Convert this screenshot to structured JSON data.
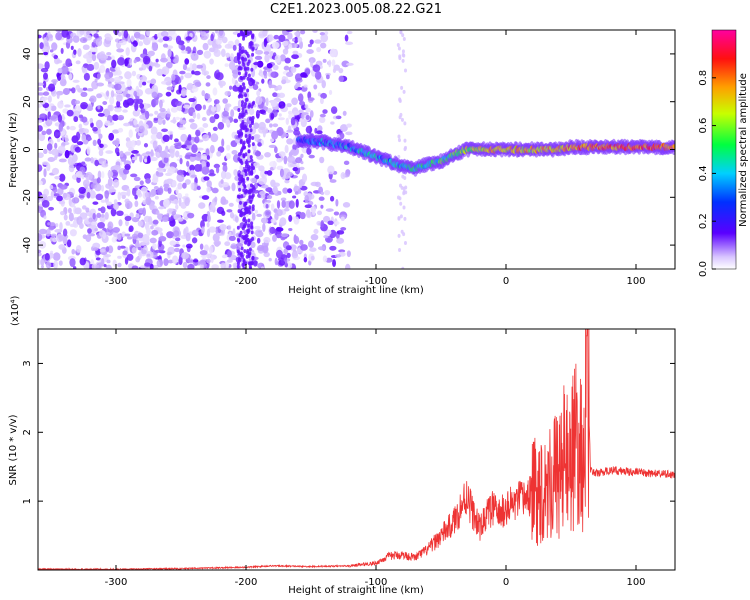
{
  "title": "C2E1.2023.005.08.22.G21",
  "colors": {
    "spectrogram_low": "#5a00ff",
    "spectrogram_mid": "#00e08a",
    "spectrogram_high": "#ff2020",
    "snr_line": "#ee3333"
  },
  "chart_data": [
    {
      "type": "heatmap",
      "xlabel": "Height of straight line (km)",
      "ylabel": "Frequency (Hz)",
      "xlim": [
        -360,
        130
      ],
      "ylim": [
        -50,
        50
      ],
      "x_ticks": [
        -300,
        -200,
        -100,
        0,
        100
      ],
      "y_ticks": [
        -40,
        -20,
        0,
        20,
        40
      ],
      "colorbar": {
        "label": "Normalized spectral amplitude",
        "range": [
          0.0,
          1.0
        ],
        "ticks": [
          "0.0",
          "0.2",
          "0.4",
          "0.6",
          "0.8"
        ],
        "colormap": "rainbow (violet → blue → cyan → green → yellow → red → magenta)"
      },
      "ridge_track": {
        "x": [
          -160,
          -140,
          -120,
          -100,
          -90,
          -80,
          -70,
          -60,
          -50,
          -40,
          -30,
          -20,
          -10,
          0,
          20,
          40,
          50,
          60,
          80,
          100,
          130
        ],
        "y": [
          4,
          3,
          1,
          -3,
          -5,
          -7,
          -8,
          -6,
          -5,
          -2,
          0,
          0,
          0,
          0,
          0,
          0,
          1,
          1,
          1,
          1,
          1
        ],
        "amplitude": [
          0.25,
          0.35,
          0.35,
          0.4,
          0.4,
          0.42,
          0.45,
          0.45,
          0.5,
          0.55,
          0.6,
          0.65,
          0.7,
          0.7,
          0.7,
          0.7,
          0.75,
          0.8,
          0.8,
          0.8,
          0.8
        ]
      },
      "noise_region": {
        "x_range": [
          -360,
          -120
        ],
        "amplitude_range": [
          0.02,
          0.15
        ]
      }
    },
    {
      "type": "line",
      "xlabel": "Height of straight line (km)",
      "ylabel": "SNR (10 * v/v)",
      "y_multiplier": "(x10⁴)",
      "xlim": [
        -360,
        130
      ],
      "ylim": [
        0,
        3.5
      ],
      "x_ticks": [
        -300,
        -200,
        -100,
        0,
        100
      ],
      "y_ticks": [
        1,
        2,
        3
      ],
      "series": [
        {
          "x": [
            -360,
            -300,
            -250,
            -200,
            -180,
            -150,
            -120,
            -100,
            -90,
            -80,
            -70,
            -60,
            -50,
            -40,
            -35,
            -30,
            -25,
            -20,
            -15,
            -10,
            -5,
            0,
            10,
            20,
            30,
            40,
            45,
            50,
            55,
            60,
            62,
            65,
            70,
            80,
            100,
            130
          ],
          "y": [
            0.01,
            0.01,
            0.02,
            0.04,
            0.06,
            0.05,
            0.06,
            0.1,
            0.2,
            0.22,
            0.18,
            0.3,
            0.5,
            0.7,
            0.9,
            1.1,
            0.8,
            0.6,
            0.8,
            0.9,
            0.8,
            0.9,
            1.0,
            1.1,
            1.25,
            1.4,
            1.6,
            1.7,
            1.8,
            1.5,
            3.4,
            1.45,
            1.4,
            1.45,
            1.42,
            1.38
          ]
        }
      ]
    }
  ]
}
